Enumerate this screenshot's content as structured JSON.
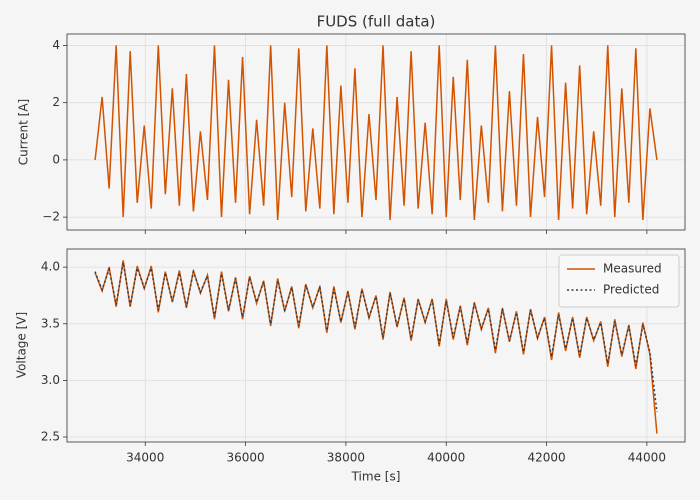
{
  "chart_data": [
    {
      "type": "line",
      "title": "FUDS (full data)",
      "y_label": "Current [A]",
      "grid": true,
      "xlim": [
        32440,
        44760
      ],
      "xticks": [
        34000,
        36000,
        38000,
        40000,
        42000,
        44000
      ],
      "ylim": [
        -2.45,
        4.4
      ],
      "yticks": [
        {
          "value": -2,
          "label": "−2"
        },
        0,
        2,
        4
      ],
      "x": [
        33000,
        33140,
        33280,
        33420,
        33560,
        33700,
        33840,
        33980,
        34120,
        34260,
        34400,
        34540,
        34680,
        34820,
        34960,
        35100,
        35240,
        35380,
        35520,
        35660,
        35800,
        35940,
        36080,
        36220,
        36360,
        36500,
        36640,
        36780,
        36920,
        37060,
        37200,
        37340,
        37480,
        37620,
        37760,
        37900,
        38040,
        38180,
        38320,
        38460,
        38600,
        38740,
        38880,
        39020,
        39160,
        39300,
        39440,
        39580,
        39720,
        39860,
        40000,
        40140,
        40280,
        40420,
        40560,
        40700,
        40840,
        40980,
        41120,
        41260,
        41400,
        41540,
        41680,
        41820,
        41960,
        42100,
        42240,
        42380,
        42520,
        42660,
        42800,
        42940,
        43080,
        43220,
        43360,
        43500,
        43640,
        43780,
        43920,
        44060,
        44200
      ],
      "series": [
        {
          "name": "Current",
          "color": "#d35400",
          "style": "solid",
          "values": [
            0,
            2.2,
            -1.0,
            4.0,
            -2.0,
            3.8,
            -1.5,
            1.2,
            -1.7,
            4.0,
            -1.2,
            2.5,
            -1.6,
            3.0,
            -1.8,
            1.0,
            -1.4,
            4.0,
            -2.0,
            2.8,
            -1.5,
            3.6,
            -1.9,
            1.4,
            -1.6,
            4.0,
            -2.1,
            2.0,
            -1.3,
            3.9,
            -1.8,
            1.1,
            -1.7,
            4.0,
            -1.9,
            2.6,
            -1.5,
            3.2,
            -2.0,
            1.6,
            -1.4,
            4.0,
            -2.1,
            2.2,
            -1.6,
            3.8,
            -1.7,
            1.3,
            -1.9,
            4.0,
            -2.0,
            2.9,
            -1.4,
            3.5,
            -2.1,
            1.2,
            -1.5,
            4.0,
            -1.8,
            2.4,
            -1.6,
            3.7,
            -2.0,
            1.5,
            -1.3,
            4.0,
            -2.1,
            2.7,
            -1.7,
            3.3,
            -1.9,
            1.0,
            -1.6,
            4.0,
            -2.0,
            2.5,
            -1.5,
            3.9,
            -2.1,
            1.8,
            0
          ]
        }
      ]
    },
    {
      "type": "line",
      "x_label": "Time [s]",
      "y_label": "Voltage [V]",
      "grid": true,
      "legend": "upper right",
      "xlim": [
        32440,
        44760
      ],
      "xticks": [
        34000,
        36000,
        38000,
        40000,
        42000,
        44000
      ],
      "ylim": [
        2.456,
        4.16
      ],
      "yticks": [
        2.5,
        {
          "value": 3,
          "label": "3.0"
        },
        3.5,
        {
          "value": 4,
          "label": "4.0"
        }
      ],
      "x": [
        33000,
        33140,
        33280,
        33420,
        33560,
        33700,
        33840,
        33980,
        34120,
        34260,
        34400,
        34540,
        34680,
        34820,
        34960,
        35100,
        35240,
        35380,
        35520,
        35660,
        35800,
        35940,
        36080,
        36220,
        36360,
        36500,
        36640,
        36780,
        36920,
        37060,
        37200,
        37340,
        37480,
        37620,
        37760,
        37900,
        38040,
        38180,
        38320,
        38460,
        38600,
        38740,
        38880,
        39020,
        39160,
        39300,
        39440,
        39580,
        39720,
        39860,
        40000,
        40140,
        40280,
        40420,
        40560,
        40700,
        40840,
        40980,
        41120,
        41260,
        41400,
        41540,
        41680,
        41820,
        41960,
        42100,
        42240,
        42380,
        42520,
        42660,
        42800,
        42940,
        43080,
        43220,
        43360,
        43500,
        43640,
        43780,
        43920,
        44060,
        44200
      ],
      "series": [
        {
          "name": "Measured",
          "color": "#d35400",
          "style": "solid",
          "values": [
            3.95,
            3.79,
            4.0,
            3.65,
            4.06,
            3.65,
            4.01,
            3.81,
            4.01,
            3.6,
            3.96,
            3.69,
            3.97,
            3.64,
            3.97,
            3.77,
            3.93,
            3.54,
            3.96,
            3.61,
            3.91,
            3.54,
            3.92,
            3.68,
            3.88,
            3.48,
            3.9,
            3.61,
            3.83,
            3.46,
            3.85,
            3.64,
            3.83,
            3.42,
            3.83,
            3.51,
            3.79,
            3.45,
            3.81,
            3.55,
            3.75,
            3.36,
            3.78,
            3.47,
            3.73,
            3.35,
            3.72,
            3.51,
            3.72,
            3.3,
            3.72,
            3.36,
            3.66,
            3.31,
            3.69,
            3.45,
            3.64,
            3.24,
            3.64,
            3.34,
            3.61,
            3.23,
            3.63,
            3.37,
            3.56,
            3.18,
            3.6,
            3.26,
            3.56,
            3.2,
            3.56,
            3.35,
            3.52,
            3.12,
            3.54,
            3.21,
            3.49,
            3.1,
            3.51,
            3.23,
            2.53
          ]
        },
        {
          "name": "Predicted",
          "color": "#2c3e50",
          "style": "dotted",
          "values": [
            3.96,
            3.8,
            3.98,
            3.67,
            4.04,
            3.66,
            3.99,
            3.82,
            3.99,
            3.62,
            3.95,
            3.7,
            3.95,
            3.65,
            3.96,
            3.78,
            3.92,
            3.56,
            3.94,
            3.62,
            3.9,
            3.56,
            3.91,
            3.69,
            3.87,
            3.5,
            3.88,
            3.62,
            3.82,
            3.48,
            3.84,
            3.65,
            3.82,
            3.44,
            3.81,
            3.52,
            3.78,
            3.47,
            3.8,
            3.56,
            3.74,
            3.38,
            3.77,
            3.48,
            3.72,
            3.37,
            3.71,
            3.52,
            3.71,
            3.32,
            3.7,
            3.38,
            3.65,
            3.33,
            3.68,
            3.46,
            3.63,
            3.27,
            3.63,
            3.35,
            3.6,
            3.25,
            3.62,
            3.38,
            3.55,
            3.21,
            3.58,
            3.28,
            3.55,
            3.22,
            3.55,
            3.36,
            3.51,
            3.15,
            3.52,
            3.23,
            3.48,
            3.13,
            3.49,
            3.25,
            2.72
          ]
        }
      ]
    }
  ]
}
